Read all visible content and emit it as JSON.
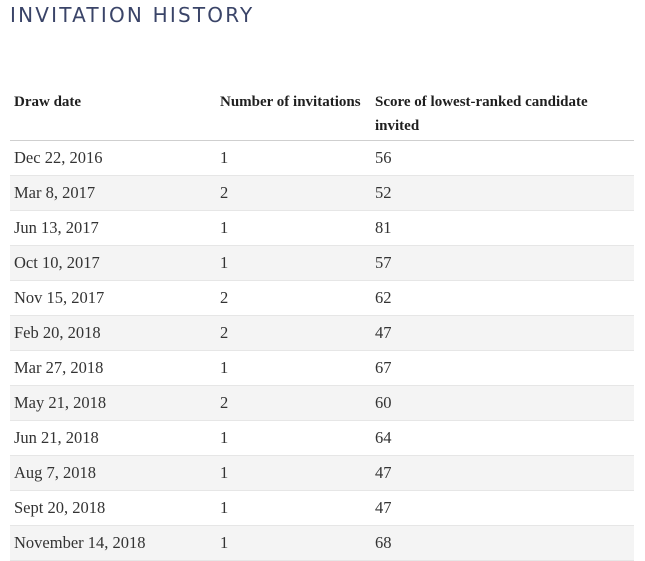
{
  "title": "INVITATION HISTORY",
  "table": {
    "headers": {
      "date": "Draw date",
      "count": "Number of invitations",
      "score": "Score of lowest-ranked candidate invited"
    },
    "rows": [
      {
        "date": "Dec 22, 2016",
        "count": "1",
        "score": "56"
      },
      {
        "date": "Mar 8, 2017",
        "count": "2",
        "score": "52"
      },
      {
        "date": "Jun 13, 2017",
        "count": "1",
        "score": "81"
      },
      {
        "date": "Oct 10, 2017",
        "count": "1",
        "score": "57"
      },
      {
        "date": "Nov 15, 2017",
        "count": "2",
        "score": "62"
      },
      {
        "date": "Feb 20, 2018",
        "count": "2",
        "score": "47"
      },
      {
        "date": "Mar 27, 2018",
        "count": "1",
        "score": "67"
      },
      {
        "date": "May 21, 2018",
        "count": "2",
        "score": "60"
      },
      {
        "date": "Jun 21, 2018",
        "count": "1",
        "score": "64"
      },
      {
        "date": "Aug 7, 2018",
        "count": "1",
        "score": "47"
      },
      {
        "date": "Sept 20, 2018",
        "count": "1",
        "score": "47"
      },
      {
        "date": "November 14, 2018",
        "count": "1",
        "score": "68"
      }
    ]
  }
}
